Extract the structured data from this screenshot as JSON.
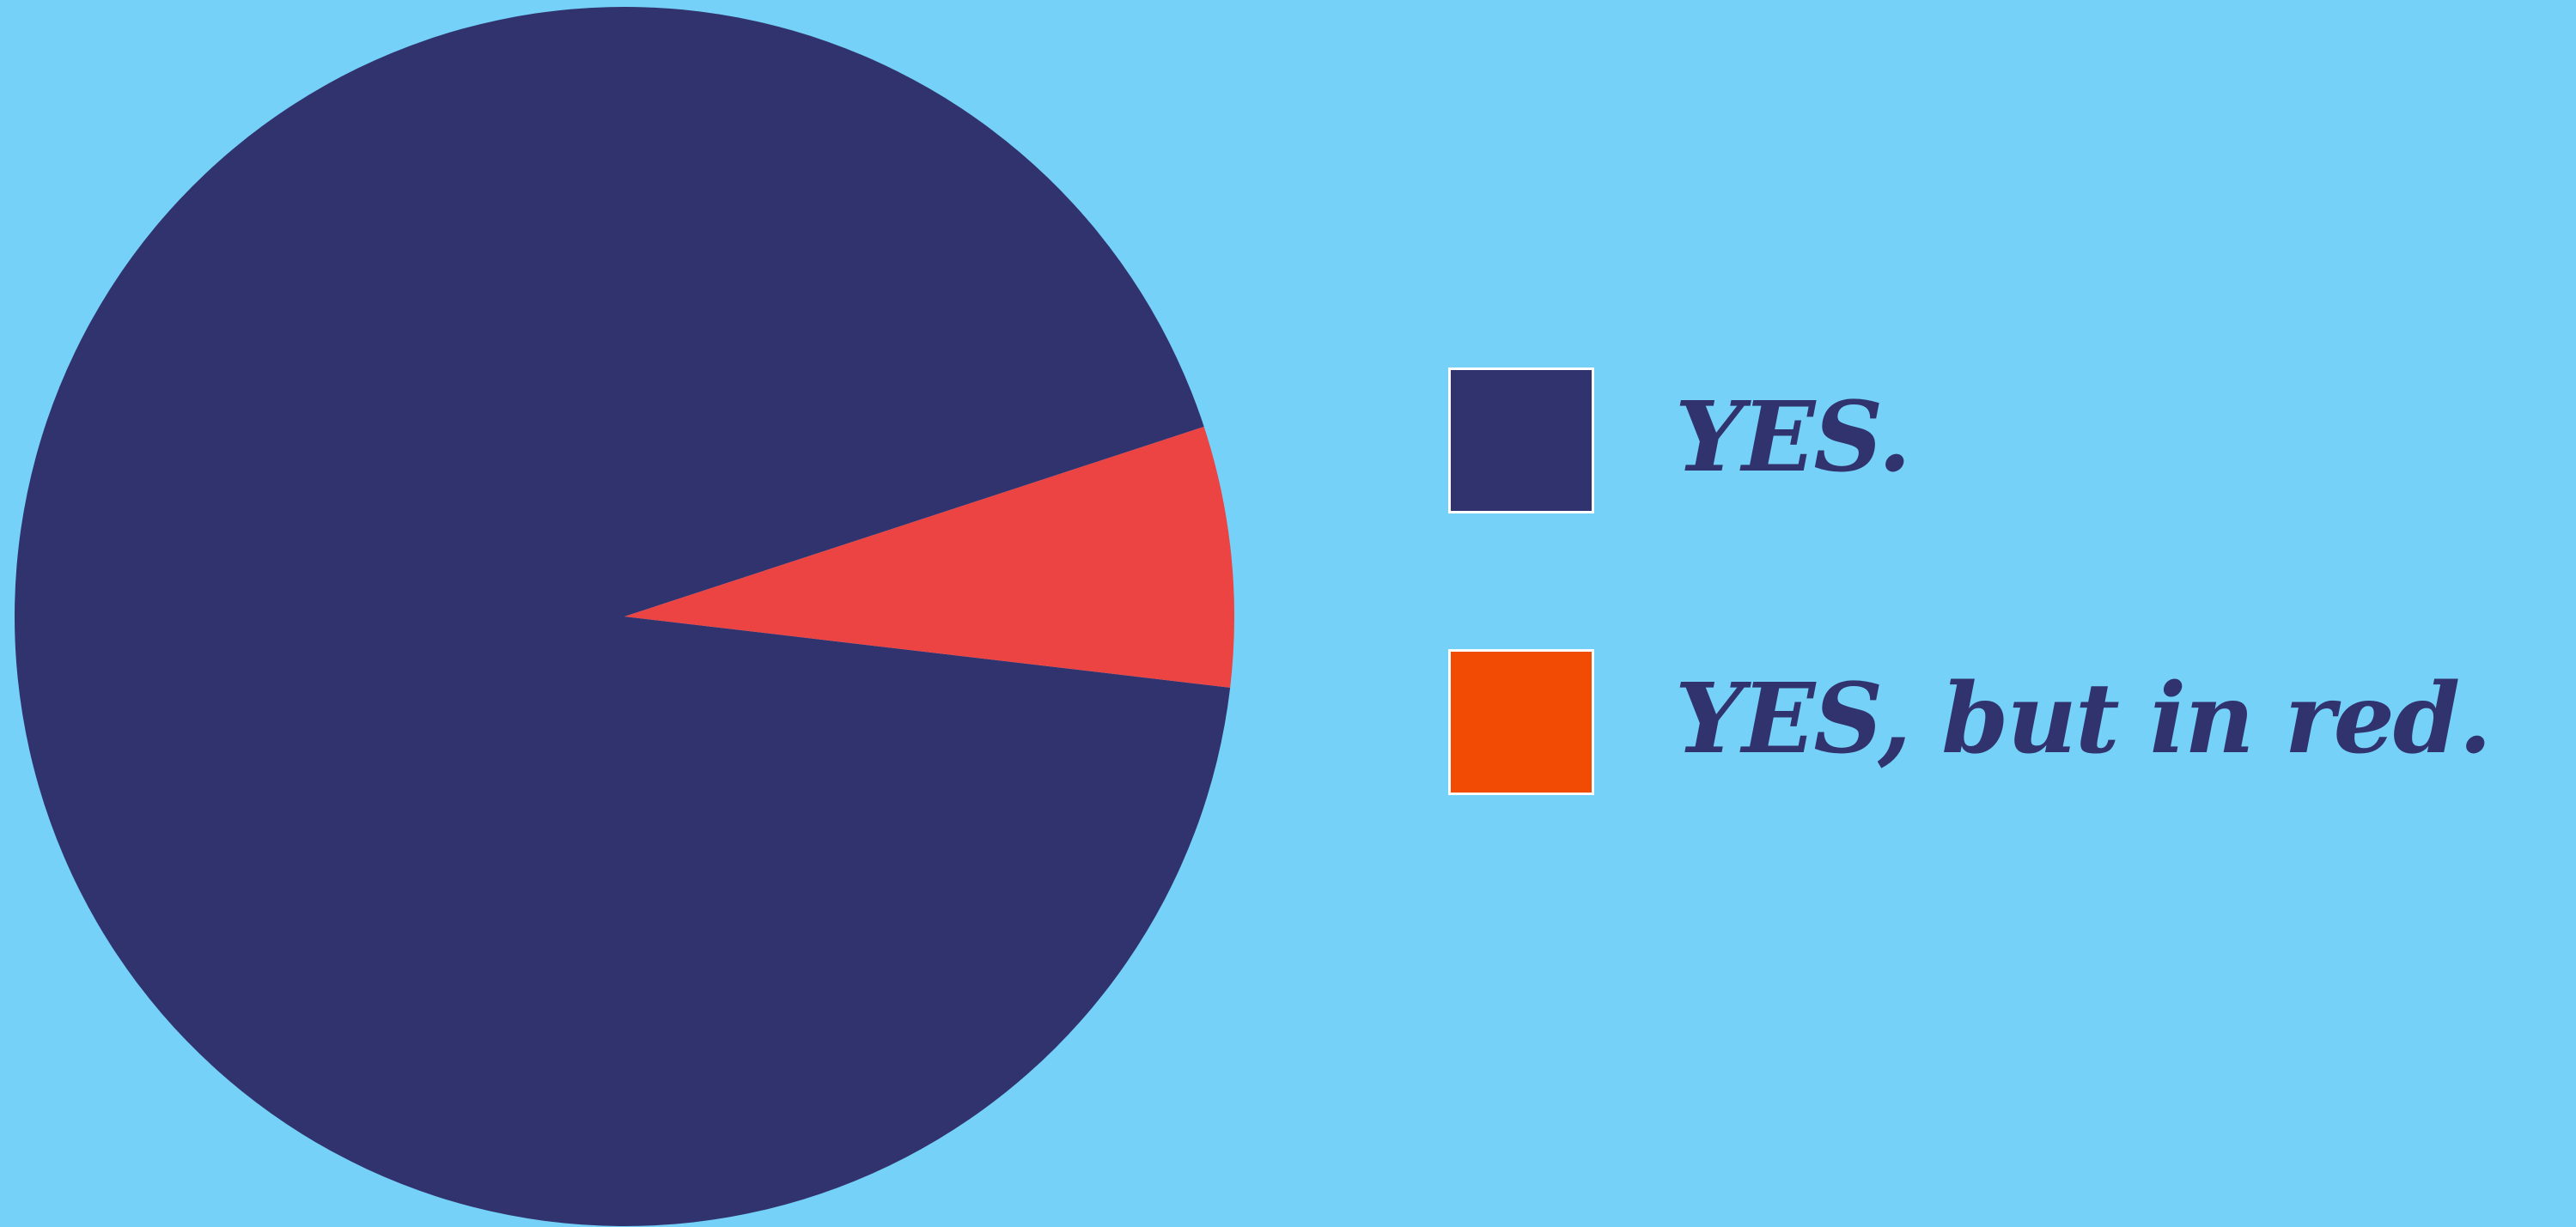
{
  "chart_data": {
    "type": "pie",
    "title": "",
    "categories": [
      "YES.",
      "YES, but in red."
    ],
    "values": [
      93.1,
      6.9
    ],
    "colors": {
      "slices": [
        "#31336e",
        "#ec4343"
      ],
      "legend_swatches": [
        "#31336e",
        "#f24c04"
      ],
      "background": "#75d1f7",
      "legend_text": "#31336e"
    },
    "start_angle_deg": 6.7,
    "direction": "clockwise",
    "legend": {
      "placement": "right",
      "items": [
        {
          "label": "YES."
        },
        {
          "label": "YES, but in red."
        }
      ]
    }
  }
}
